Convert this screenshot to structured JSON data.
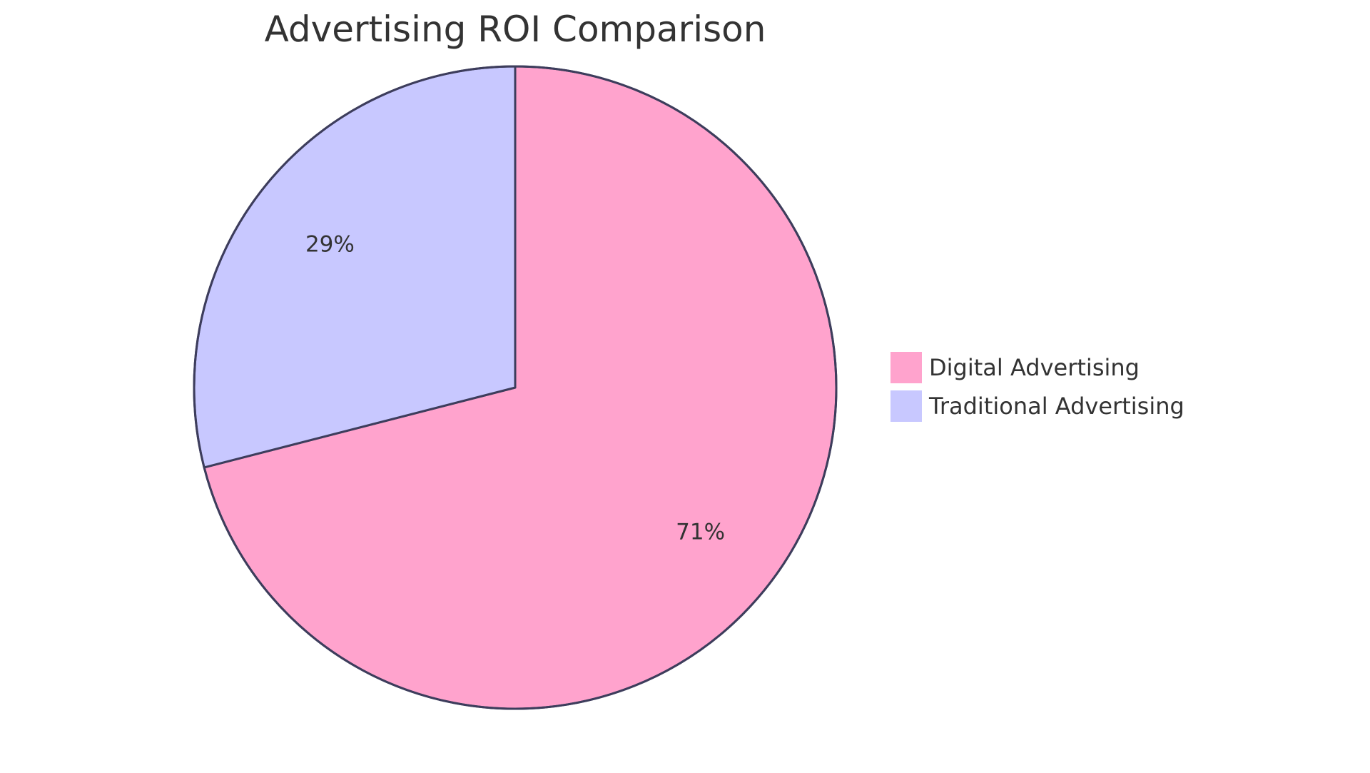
{
  "chart_data": {
    "type": "pie",
    "title": "Advertising ROI Comparison",
    "slices": [
      {
        "name": "Digital Advertising",
        "value": 71,
        "label": "71%",
        "color": "#ffa3cd"
      },
      {
        "name": "Traditional Advertising",
        "value": 29,
        "label": "29%",
        "color": "#c8c8ff"
      }
    ],
    "legend_position": "right",
    "stroke_color": "#3d3d5c"
  }
}
